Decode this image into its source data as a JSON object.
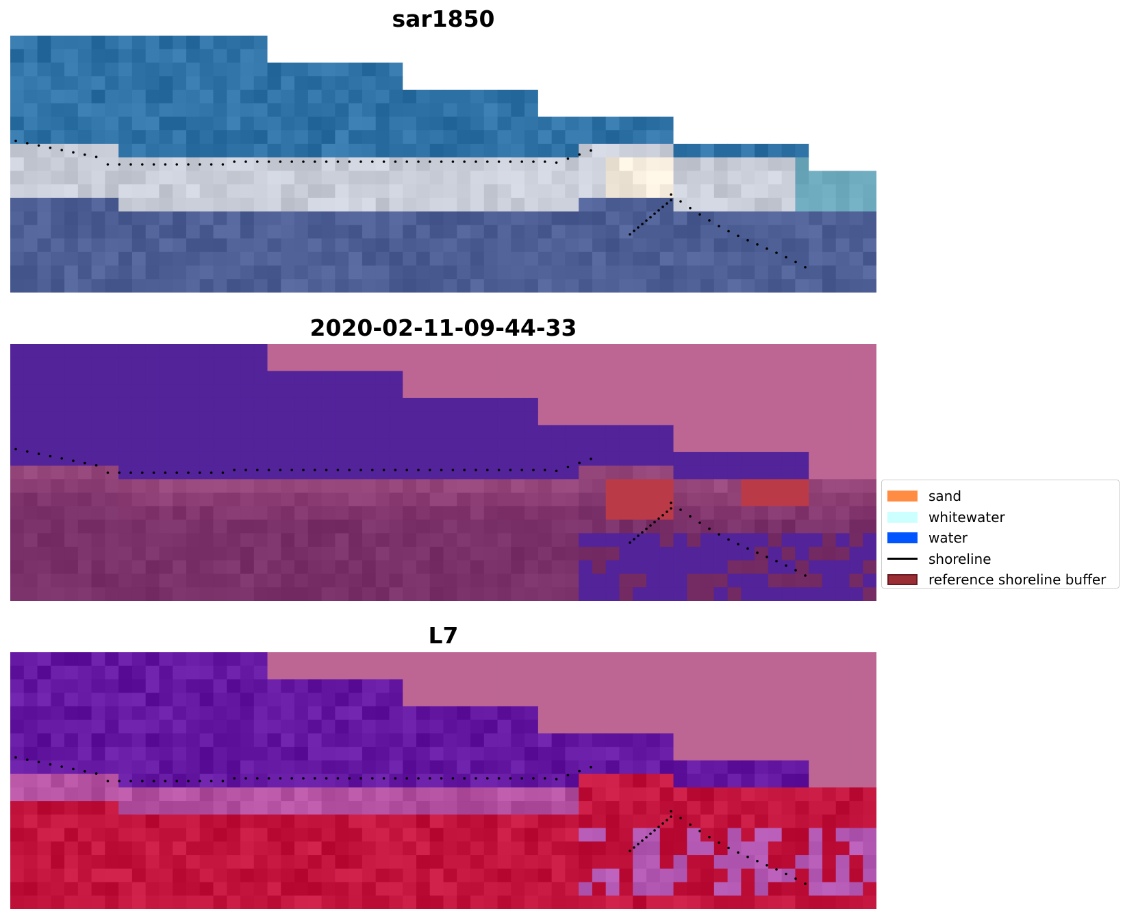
{
  "panels": [
    {
      "title": "sar1850",
      "kind": "rgb"
    },
    {
      "title": "2020-02-11-09-44-33",
      "kind": "classified"
    },
    {
      "title": "L7",
      "kind": "index"
    }
  ],
  "legend": {
    "items": [
      {
        "label": "sand",
        "kind": "patch",
        "color": "#ff8c42"
      },
      {
        "label": "whitewater",
        "kind": "patch",
        "color": "#ccffff"
      },
      {
        "label": "water",
        "kind": "patch",
        "color": "#0055ff"
      },
      {
        "label": "shoreline",
        "kind": "line",
        "color": "#000000"
      },
      {
        "label": "reference shoreline buffer",
        "kind": "patch",
        "color": "#9b2d35"
      }
    ]
  },
  "colors": {
    "nodata_mask": "#bd6694",
    "classified_water": "#53239a",
    "classified_buffer": "#bb3a48",
    "classified_land": "#7a3068",
    "rgb_water": "#2f72a6",
    "rgb_surf": "#c9cdd8",
    "rgb_land": "#4d5f95",
    "index_water": "#6417a0",
    "index_land": "#c3143e",
    "shoreline_dots": "#000000"
  }
}
